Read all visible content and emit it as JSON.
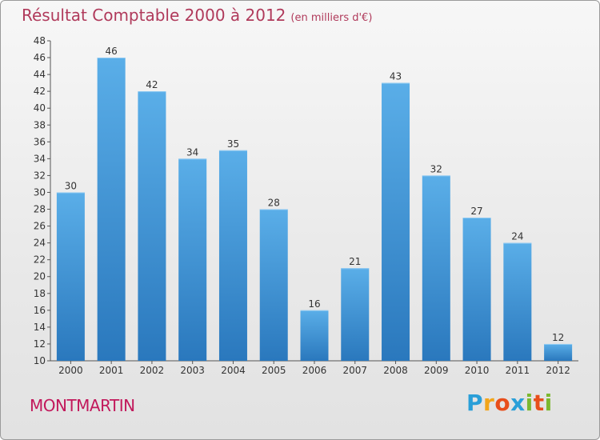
{
  "chart_data": {
    "type": "bar",
    "title": "Résultat Comptable 2000 à 2012",
    "subtitle": "(en milliers d'€)",
    "categories": [
      "2000",
      "2001",
      "2002",
      "2003",
      "2004",
      "2005",
      "2006",
      "2007",
      "2008",
      "2009",
      "2010",
      "2011",
      "2012"
    ],
    "values": [
      30,
      46,
      42,
      34,
      35,
      28,
      16,
      21,
      43,
      32,
      27,
      24,
      12
    ],
    "ylim": [
      10,
      48
    ],
    "yticks": [
      10,
      12,
      14,
      16,
      18,
      20,
      22,
      24,
      26,
      28,
      30,
      32,
      34,
      36,
      38,
      40,
      42,
      44,
      46,
      48
    ],
    "xlabel": "",
    "ylabel": "",
    "grid": false,
    "bar_color": "#3d8fd1"
  },
  "commune": "MONTMARTIN",
  "logo": {
    "letters": [
      "P",
      "r",
      "o",
      "x",
      "i",
      "t",
      "i"
    ],
    "colors": [
      "#2a9fd8",
      "#f2a51a",
      "#e84e1b",
      "#2a9fd8",
      "#7cb82f",
      "#e84e1b",
      "#7cb82f"
    ]
  }
}
